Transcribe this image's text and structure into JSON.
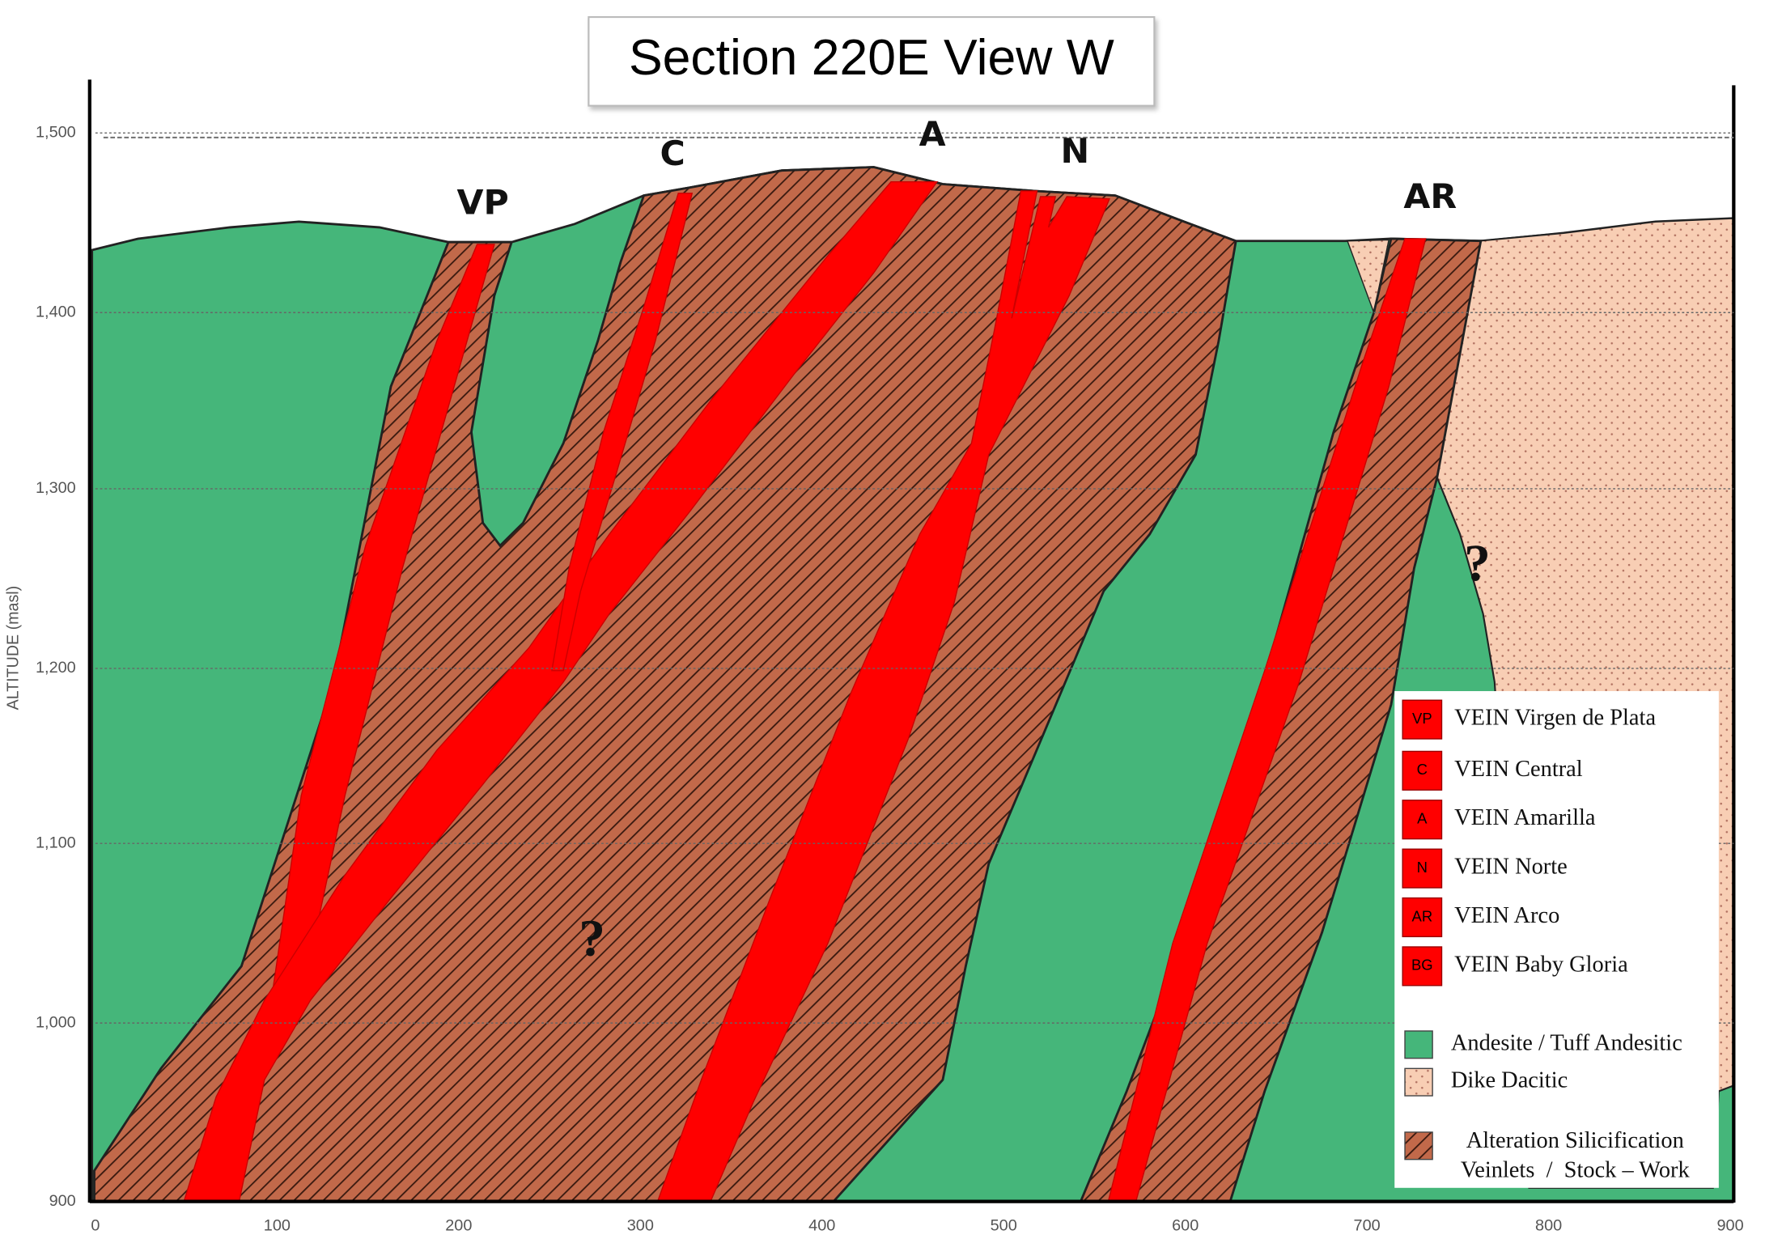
{
  "title": "Section 220E View W",
  "y_axis": {
    "label": "ALTITUDE (masl)",
    "ticks": [
      "1,500",
      "1,400",
      "1,300",
      "1,200",
      "1,100",
      "1,000",
      "900"
    ]
  },
  "x_axis": {
    "ticks": [
      "0",
      "100",
      "200",
      "300",
      "400",
      "500",
      "600",
      "700",
      "800",
      "900"
    ]
  },
  "vein_labels": [
    "VP",
    "C",
    "A",
    "N",
    "AR"
  ],
  "question_marks": [
    "?",
    "?"
  ],
  "legend": {
    "veins": [
      {
        "code": "VP",
        "label": "VEIN Virgen de Plata"
      },
      {
        "code": "C",
        "label": "VEIN Central"
      },
      {
        "code": "A",
        "label": "VEIN Amarilla"
      },
      {
        "code": "N",
        "label": "VEIN Norte"
      },
      {
        "code": "AR",
        "label": "VEIN Arco"
      },
      {
        "code": "BG",
        "label": "VEIN Baby Gloria"
      }
    ],
    "units": [
      {
        "label": "Andesite / Tuff Andesitic"
      },
      {
        "label": "Dike Dacitic"
      },
      {
        "label": [
          "Alteration Silicification",
          "Veinlets  /  Stock – Work"
        ]
      }
    ]
  }
}
